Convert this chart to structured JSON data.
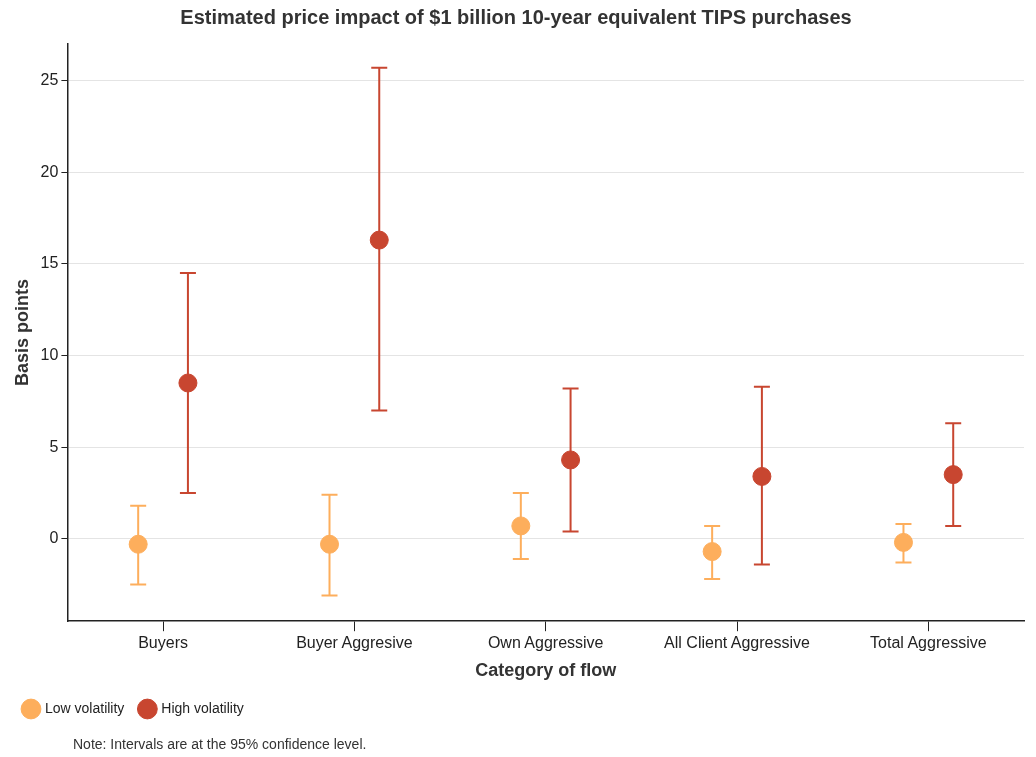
{
  "chart_data": {
    "type": "scatter",
    "title": "Estimated price impact of $1 billion 10-year equivalent TIPS purchases",
    "xlabel": "Category of flow",
    "ylabel": "Basis points",
    "categories": [
      "Buyers",
      "Buyer Aggresive",
      "Own Aggressive",
      "All Client Aggressive",
      "Total Aggressive"
    ],
    "series": [
      {
        "name": "Low volatility",
        "color": "#fdae5c",
        "values": [
          -0.3,
          -0.3,
          0.7,
          -0.7,
          -0.2
        ],
        "errors": [
          [
            -2.5,
            1.8
          ],
          [
            -3.1,
            2.4
          ],
          [
            -1.1,
            2.5
          ],
          [
            -2.2,
            0.7
          ],
          [
            -1.3,
            0.8
          ]
        ]
      },
      {
        "name": "High volatility",
        "color": "#c84630",
        "values": [
          8.5,
          16.3,
          4.3,
          3.4,
          3.5
        ],
        "errors": [
          [
            2.5,
            14.5
          ],
          [
            7.0,
            25.7
          ],
          [
            0.4,
            8.2
          ],
          [
            -1.4,
            8.3
          ],
          [
            0.7,
            6.3
          ]
        ]
      }
    ],
    "ylim": [
      -4.5,
      27
    ],
    "yticks": [
      0,
      5,
      10,
      15,
      20,
      25
    ],
    "grid": "y",
    "legend": "bottom left",
    "marker": "circle",
    "annotations": [
      "Note: Intervals are at the 95% confidence level."
    ]
  }
}
